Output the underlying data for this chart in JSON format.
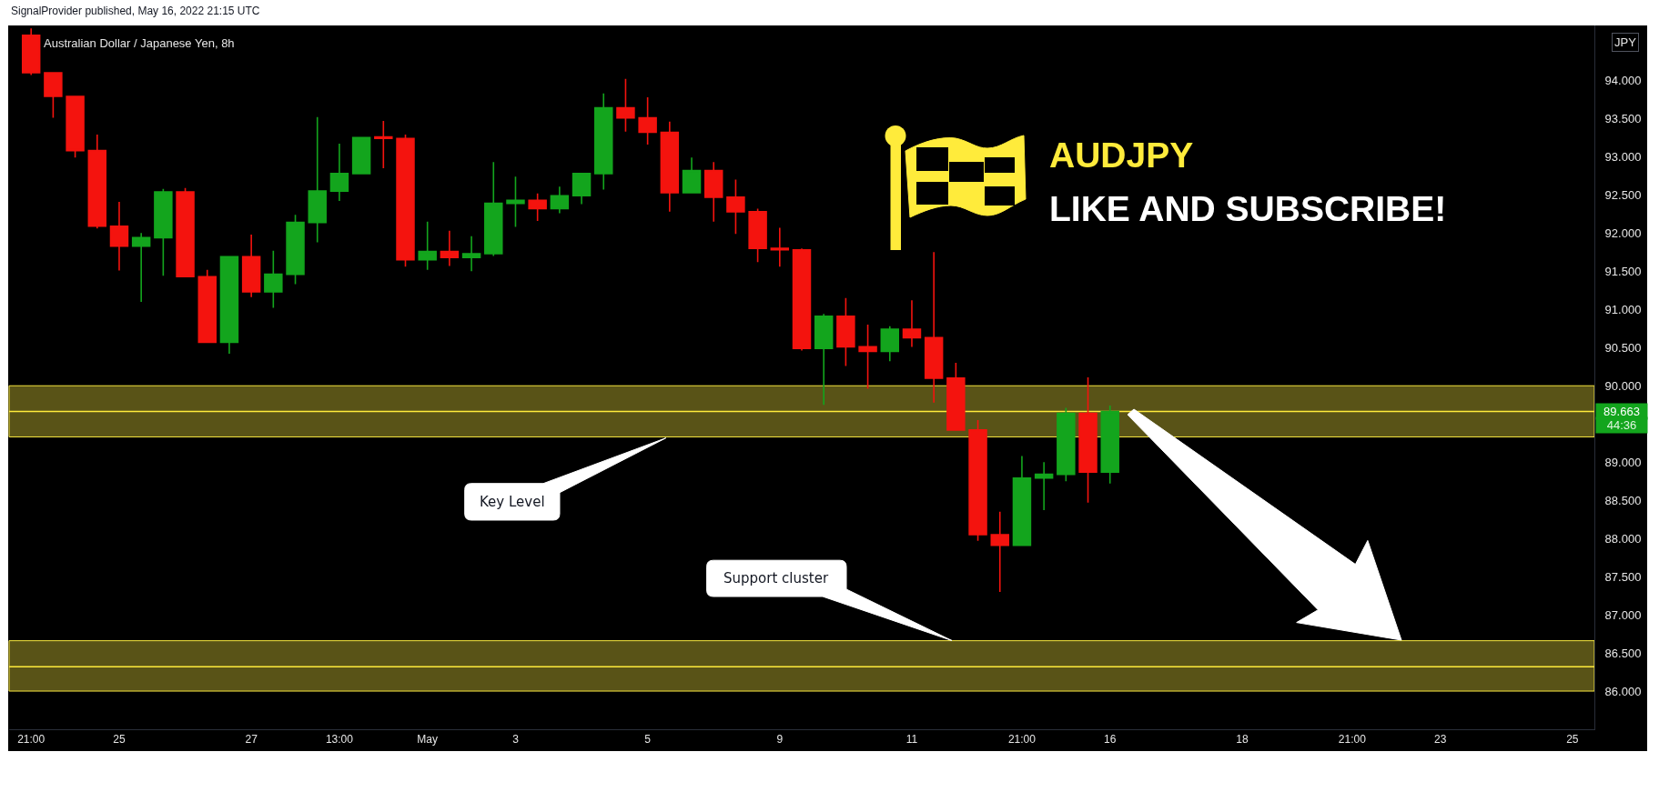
{
  "chart_data": {
    "type": "candlestick",
    "title": "Australian Dollar / Japanese Yen, 8h",
    "ylabel": "JPY",
    "categories": [
      "21:00",
      null,
      null,
      null,
      "25",
      null,
      null,
      null,
      null,
      null,
      "27",
      null,
      null,
      null,
      "13:00",
      null,
      null,
      null,
      "May",
      null,
      null,
      null,
      "3",
      null,
      null,
      null,
      null,
      null,
      "5",
      null,
      null,
      null,
      null,
      null,
      "9",
      null,
      null,
      null,
      null,
      null,
      "11",
      null,
      null,
      null,
      null,
      "21:00",
      null,
      null,
      null,
      "16",
      null,
      null,
      null,
      null,
      null,
      "18",
      null,
      null,
      null,
      null,
      "21:00",
      null,
      null,
      null,
      "23",
      null,
      null,
      null,
      null,
      null,
      "25",
      null
    ],
    "ohlc": [
      [
        94.59,
        94.68,
        94.07,
        94.1
      ],
      [
        94.1,
        94.11,
        93.51,
        93.79
      ],
      [
        93.79,
        93.8,
        92.99,
        93.08
      ],
      [
        93.08,
        93.29,
        92.06,
        92.09
      ],
      [
        92.09,
        92.41,
        91.51,
        91.83
      ],
      [
        91.83,
        92.0,
        91.1,
        91.94
      ],
      [
        91.94,
        92.58,
        91.44,
        92.54
      ],
      [
        92.54,
        92.59,
        91.42,
        91.43
      ],
      [
        91.43,
        91.52,
        90.56,
        90.57
      ],
      [
        90.57,
        91.69,
        90.42,
        91.69
      ],
      [
        91.69,
        91.98,
        91.16,
        91.23
      ],
      [
        91.23,
        91.77,
        91.02,
        91.46
      ],
      [
        91.46,
        92.24,
        91.33,
        92.14
      ],
      [
        92.14,
        93.52,
        91.88,
        92.55
      ],
      [
        92.55,
        93.17,
        92.42,
        92.78
      ],
      [
        92.78,
        93.26,
        92.78,
        93.25
      ],
      [
        93.26,
        93.47,
        92.85,
        93.24
      ],
      [
        93.24,
        93.29,
        91.56,
        91.65
      ],
      [
        91.65,
        92.15,
        91.52,
        91.76
      ],
      [
        91.76,
        92.03,
        91.57,
        91.68
      ],
      [
        91.68,
        91.96,
        91.5,
        91.73
      ],
      [
        91.73,
        92.93,
        91.7,
        92.39
      ],
      [
        92.39,
        92.74,
        92.08,
        92.43
      ],
      [
        92.43,
        92.52,
        92.16,
        92.32
      ],
      [
        92.32,
        92.61,
        92.26,
        92.49
      ],
      [
        92.49,
        92.79,
        92.38,
        92.78
      ],
      [
        92.78,
        93.83,
        92.57,
        93.64
      ],
      [
        93.64,
        94.02,
        93.33,
        93.51
      ],
      [
        93.51,
        93.78,
        93.16,
        93.32
      ],
      [
        93.32,
        93.46,
        92.28,
        92.53
      ],
      [
        92.53,
        92.99,
        92.53,
        92.82
      ],
      [
        92.82,
        92.93,
        92.15,
        92.47
      ],
      [
        92.47,
        92.7,
        91.99,
        92.28
      ],
      [
        92.28,
        92.32,
        91.62,
        91.8
      ],
      [
        91.8,
        92.07,
        91.56,
        91.78
      ],
      [
        91.78,
        91.8,
        90.46,
        90.49
      ],
      [
        90.49,
        90.94,
        89.75,
        90.91
      ],
      [
        90.91,
        91.15,
        90.26,
        90.51
      ],
      [
        90.51,
        90.8,
        89.96,
        90.45
      ],
      [
        90.45,
        90.78,
        90.32,
        90.74
      ],
      [
        90.74,
        91.12,
        90.51,
        90.63
      ],
      [
        90.63,
        91.75,
        89.78,
        90.1
      ],
      [
        90.1,
        90.3,
        89.41,
        89.42
      ],
      [
        89.42,
        89.55,
        87.97,
        88.05
      ],
      [
        88.05,
        88.35,
        87.3,
        87.91
      ],
      [
        87.91,
        89.08,
        87.91,
        88.79
      ],
      [
        88.79,
        89.0,
        88.37,
        88.84
      ],
      [
        88.84,
        89.71,
        88.75,
        89.64
      ],
      [
        89.64,
        90.11,
        88.47,
        88.87
      ],
      [
        88.87,
        89.74,
        88.72,
        89.663
      ],
      null,
      null,
      null,
      null,
      null,
      null,
      null,
      null,
      null,
      null,
      null,
      null,
      null,
      null,
      null,
      null,
      null,
      null,
      null,
      null,
      null,
      null
    ],
    "colors": [
      "#f4130e",
      "#f4130e",
      "#f4130e",
      "#f4130e",
      "#f4130e",
      "#13a51d",
      "#13a51d",
      "#f4130e",
      "#f4130e",
      "#13a51d",
      "#f4130e",
      "#13a51d",
      "#13a51d",
      "#13a51d",
      "#13a51d",
      "#13a51d",
      "#f4130e",
      "#f4130e",
      "#13a51d",
      "#f4130e",
      "#13a51d",
      "#13a51d",
      "#13a51d",
      "#f4130e",
      "#13a51d",
      "#13a51d",
      "#13a51d",
      "#f4130e",
      "#f4130e",
      "#f4130e",
      "#13a51d",
      "#f4130e",
      "#f4130e",
      "#f4130e",
      "#f4130e",
      "#f4130e",
      "#13a51d",
      "#f4130e",
      "#f4130e",
      "#13a51d",
      "#f4130e",
      "#f4130e",
      "#f4130e",
      "#f4130e",
      "#f4130e",
      "#13a51d",
      "#13a51d",
      "#13a51d",
      "#f4130e",
      "#13a51d",
      null,
      null,
      null,
      null,
      null,
      null,
      null,
      null,
      null,
      null,
      null,
      null,
      null,
      null,
      null,
      null,
      null,
      null,
      null,
      null,
      null,
      null
    ],
    "ylim": [
      85.5,
      94.72
    ],
    "yticks": [
      {
        "value": 86.0,
        "label": "86.000"
      },
      {
        "value": 86.5,
        "label": "86.500"
      },
      {
        "value": 87.0,
        "label": "87.000"
      },
      {
        "value": 87.5,
        "label": "87.500"
      },
      {
        "value": 88.0,
        "label": "88.000"
      },
      {
        "value": 88.5,
        "label": "88.500"
      },
      {
        "value": 89.0,
        "label": "89.000"
      },
      {
        "value": 90.0,
        "label": "90.000"
      },
      {
        "value": 90.5,
        "label": "90.500"
      },
      {
        "value": 91.0,
        "label": "91.000"
      },
      {
        "value": 91.5,
        "label": "91.500"
      },
      {
        "value": 92.0,
        "label": "92.000"
      },
      {
        "value": 92.5,
        "label": "92.500"
      },
      {
        "value": 93.0,
        "label": "93.000"
      },
      {
        "value": 93.5,
        "label": "93.500"
      },
      {
        "value": 94.0,
        "label": "94.000"
      }
    ],
    "bands": [
      {
        "axis": "y",
        "from": 89.33,
        "to": 90.0,
        "color": "#f7e740"
      },
      {
        "axis": "y",
        "from": 86.0,
        "to": 86.66,
        "color": "#f7e740"
      }
    ],
    "ref_lines": [
      {
        "axis": "y",
        "value": 89.663,
        "label": "89.663",
        "color": "#ffeb3b"
      },
      {
        "axis": "y",
        "value": 86.32,
        "color": "#ffeb3b"
      }
    ],
    "annotations": [
      "SignalProvider published, May 16, 2022 21:15 UTC",
      "AUDJPY",
      "LIKE AND SUBSCRIBE!",
      "Key Level",
      "Support cluster",
      "44:36"
    ]
  }
}
